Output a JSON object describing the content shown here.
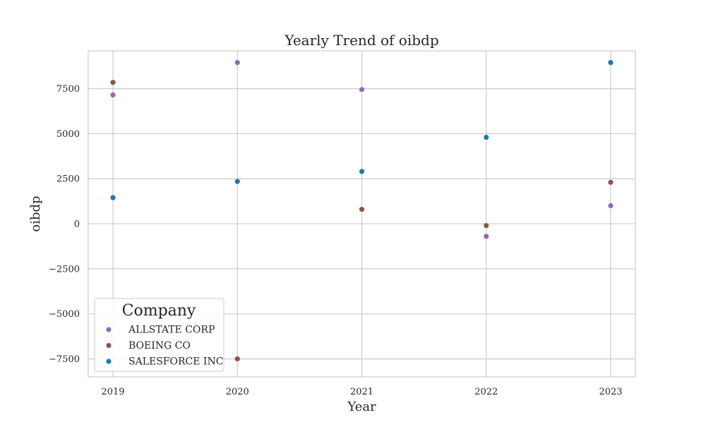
{
  "chart_data": {
    "type": "scatter",
    "title": "Yearly Trend of oibdp",
    "xlabel": "Year",
    "ylabel": "oibdp",
    "categories": [
      "2019",
      "2020",
      "2021",
      "2022",
      "2023"
    ],
    "ylim": [
      -8500,
      9600
    ],
    "yticks": [
      -7500,
      -5000,
      -2500,
      0,
      2500,
      5000,
      7500
    ],
    "ytick_labels": [
      "−7500",
      "−5000",
      "−2500",
      "0",
      "2500",
      "5000",
      "7500"
    ],
    "grid": true,
    "legend": {
      "title": "Company",
      "position": "bottom-left"
    },
    "series": [
      {
        "name": "ALLSTATE CORP",
        "color": "#9467bd",
        "values": [
          7150,
          8950,
          7450,
          -700,
          1000
        ]
      },
      {
        "name": "BOEING CO",
        "color": "#8c564b",
        "values": [
          7850,
          -7500,
          800,
          -100,
          2300
        ]
      },
      {
        "name": "SALESFORCE INC",
        "color": "#1f77b4",
        "values": [
          1450,
          2350,
          2900,
          4800,
          8950
        ]
      }
    ]
  }
}
